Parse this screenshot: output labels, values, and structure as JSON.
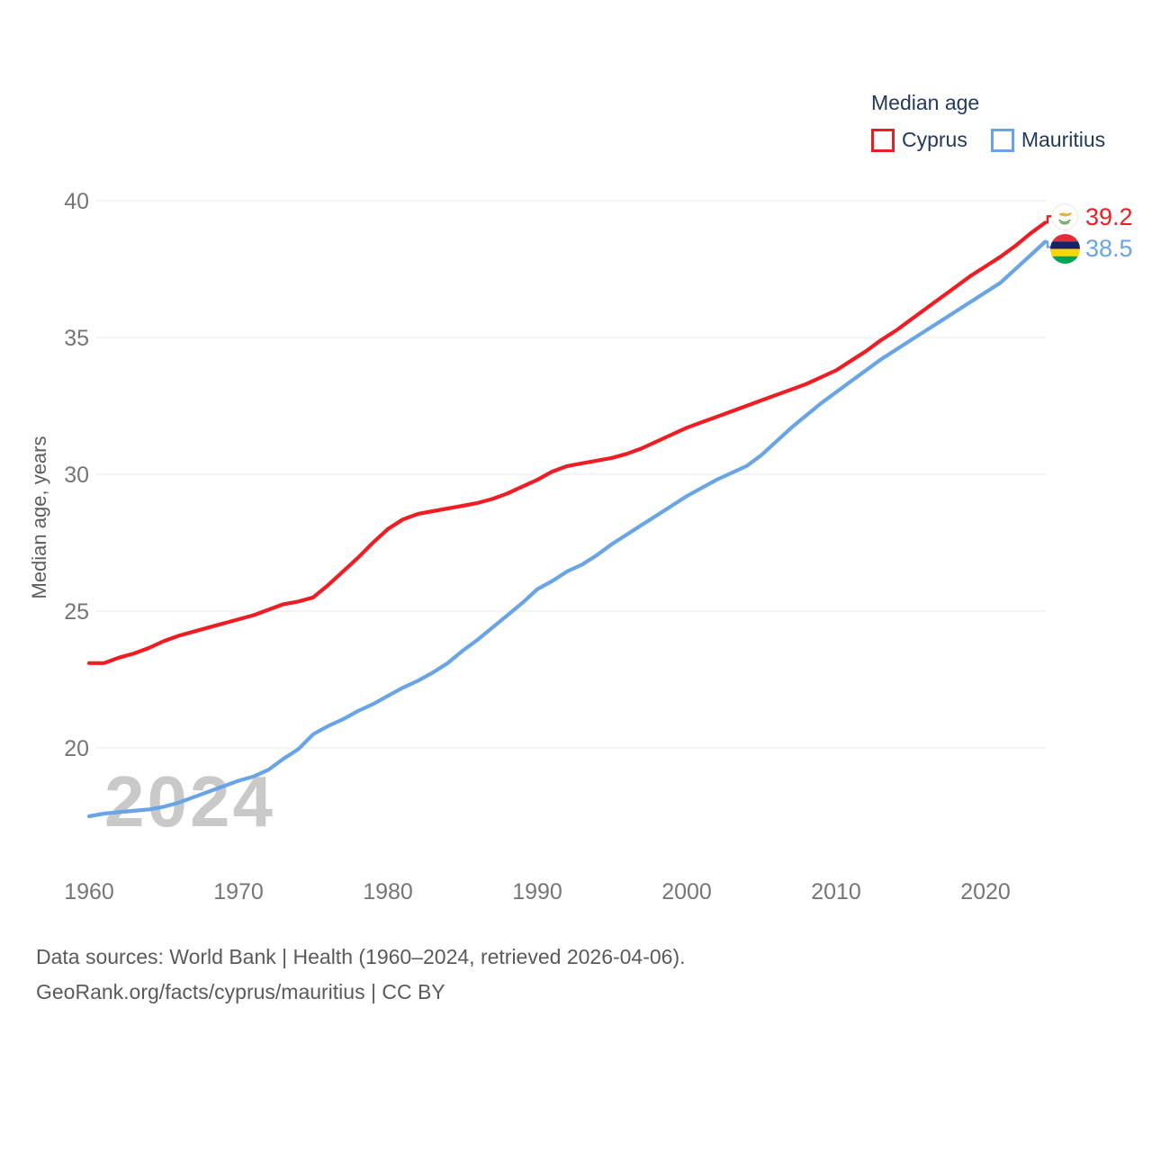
{
  "watermark": "2024",
  "legend": {
    "title": "Median age"
  },
  "y_axis": {
    "title": "Median age, years"
  },
  "footer": {
    "line1": "Data sources: World Bank | Health (1960–2024, retrieved 2026-04-06).",
    "line2": "GeoRank.org/facts/cyprus/mauritius | CC BY"
  },
  "colors": {
    "cyprus": "#ee1d23",
    "mauritius": "#68a4e6",
    "grid": "#ececec",
    "tick_label": "#767676",
    "legend_text": "#24395b",
    "watermark": "#c9c9c9"
  },
  "chart_data": {
    "type": "line",
    "title": "Median age",
    "xlabel": "",
    "ylabel": "Median age, years",
    "x_domain": [
      1960,
      2024
    ],
    "x_step": 1,
    "x_ticks": [
      1960,
      1970,
      1980,
      1990,
      2000,
      2010,
      2020
    ],
    "y_ticks": [
      20,
      25,
      30,
      35,
      40
    ],
    "ylim": [
      20,
      40
    ],
    "grid": "horizontal",
    "legend_position": "top-right",
    "series": [
      {
        "name": "Cyprus",
        "color": "#ee1d23",
        "end_label": "39.2",
        "values": [
          23.1,
          23.1,
          23.3,
          23.45,
          23.65,
          23.9,
          24.1,
          24.25,
          24.4,
          24.55,
          24.7,
          24.85,
          25.05,
          25.25,
          25.35,
          25.5,
          25.95,
          26.45,
          26.95,
          27.5,
          28.0,
          28.35,
          28.55,
          28.65,
          28.75,
          28.85,
          28.95,
          29.1,
          29.3,
          29.55,
          29.8,
          30.1,
          30.3,
          30.4,
          30.5,
          30.6,
          30.75,
          30.95,
          31.2,
          31.45,
          31.7,
          31.9,
          32.1,
          32.3,
          32.5,
          32.7,
          32.9,
          33.1,
          33.3,
          33.55,
          33.8,
          34.15,
          34.5,
          34.9,
          35.25,
          35.65,
          36.05,
          36.45,
          36.85,
          37.25,
          37.6,
          37.95,
          38.35,
          38.8,
          39.2
        ]
      },
      {
        "name": "Mauritius",
        "color": "#68a4e6",
        "end_label": "38.5",
        "values": [
          17.5,
          17.6,
          17.65,
          17.7,
          17.75,
          17.85,
          18.0,
          18.2,
          18.4,
          18.6,
          18.8,
          18.95,
          19.2,
          19.6,
          19.95,
          20.5,
          20.8,
          21.05,
          21.35,
          21.6,
          21.9,
          22.2,
          22.45,
          22.75,
          23.1,
          23.55,
          23.95,
          24.4,
          24.85,
          25.3,
          25.8,
          26.1,
          26.45,
          26.7,
          27.05,
          27.45,
          27.8,
          28.15,
          28.5,
          28.85,
          29.2,
          29.5,
          29.8,
          30.05,
          30.3,
          30.7,
          31.2,
          31.7,
          32.15,
          32.6,
          33.0,
          33.4,
          33.8,
          34.2,
          34.55,
          34.9,
          35.25,
          35.6,
          35.95,
          36.3,
          36.65,
          37.0,
          37.5,
          38.0,
          38.5
        ]
      }
    ]
  }
}
